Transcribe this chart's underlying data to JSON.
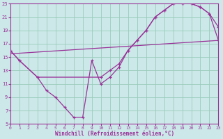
{
  "bg_color": "#cce8e8",
  "line_color": "#993399",
  "grid_color": "#99ccbb",
  "xlabel": "Windchill (Refroidissement éolien,°C)",
  "xlim": [
    0,
    23
  ],
  "ylim": [
    5,
    23
  ],
  "yticks": [
    5,
    7,
    9,
    11,
    13,
    15,
    17,
    19,
    21,
    23
  ],
  "xticks": [
    0,
    1,
    2,
    3,
    4,
    5,
    6,
    7,
    8,
    9,
    10,
    11,
    12,
    13,
    14,
    15,
    16,
    17,
    18,
    19,
    20,
    21,
    22,
    23
  ],
  "line1_x": [
    0,
    1,
    3,
    4,
    5,
    6,
    7,
    8,
    9,
    10,
    11,
    12,
    13,
    14,
    15,
    16,
    17,
    18,
    19,
    20,
    21,
    22,
    23
  ],
  "line1_y": [
    16,
    14.5,
    12,
    10,
    9,
    7.5,
    6,
    6,
    14.5,
    11,
    12,
    13.5,
    16,
    17.5,
    19,
    21,
    22,
    23,
    23,
    23,
    22.5,
    21.5,
    19.5
  ],
  "line2_x": [
    0,
    1,
    3,
    10,
    11,
    12,
    13,
    14,
    15,
    16,
    17,
    18,
    19,
    20,
    21,
    22,
    23
  ],
  "line2_y": [
    16,
    14.5,
    12,
    12,
    13,
    14,
    16,
    17.5,
    19,
    21,
    22,
    23,
    23,
    23,
    22.5,
    21.5,
    17.5
  ],
  "line3_x": [
    0,
    23
  ],
  "line3_y": [
    15.5,
    17.5
  ]
}
